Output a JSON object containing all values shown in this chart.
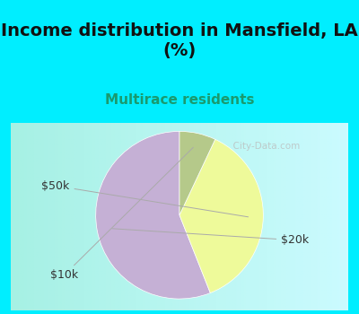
{
  "title": "Income distribution in Mansfield, LA\n(%)",
  "subtitle": "Multirace residents",
  "subtitle_color": "#1a9a6e",
  "slices": [
    {
      "label": "$20k",
      "value": 56,
      "color": "#c5b0d5"
    },
    {
      "label": "$50k",
      "value": 37,
      "color": "#eefa9a"
    },
    {
      "label": "$10k",
      "value": 7,
      "color": "#b5c98a"
    }
  ],
  "background_top": "#00eeff",
  "watermark": "  City-Data.com",
  "startangle": 90,
  "label_fontsize": 9,
  "title_fontsize": 14,
  "subtitle_fontsize": 11,
  "label_color": "#333333",
  "label_line_color": "#aaaaaa",
  "label_positions": {
    "$20k": [
      1.38,
      -0.3
    ],
    "$50k": [
      -1.48,
      0.35
    ],
    "$10k": [
      -1.38,
      -0.72
    ]
  }
}
